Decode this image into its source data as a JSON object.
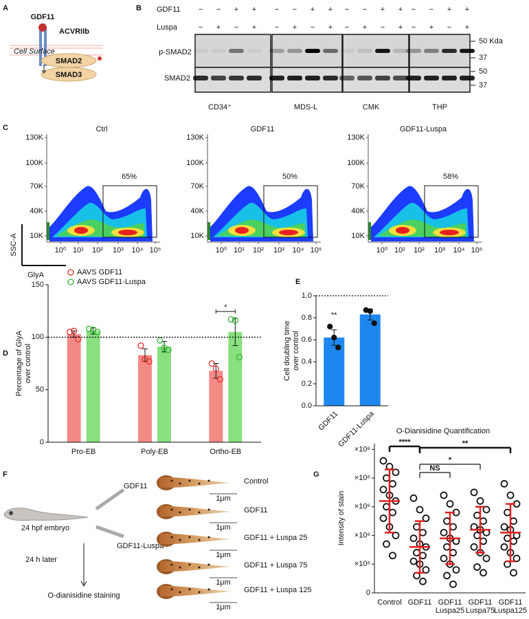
{
  "panel_labels": [
    "A",
    "B",
    "C",
    "D",
    "E",
    "F",
    "G"
  ],
  "panel_a": {
    "ligand": "GDF11",
    "receptor": "ACVRIIb",
    "membrane": "Cell Surface",
    "smads": [
      "SMAD2",
      "SMAD3"
    ]
  },
  "panel_b": {
    "rows": [
      {
        "name": "GDF11",
        "signs": [
          "−",
          "−",
          "+",
          "+",
          "−",
          "−",
          "+",
          "+",
          "−",
          "−",
          "+",
          "+",
          "−",
          "−",
          "+",
          "+"
        ]
      },
      {
        "name": "Luspa",
        "signs": [
          "−",
          "+",
          "−",
          "+",
          "−",
          "+",
          "−",
          "+",
          "−",
          "+",
          "−",
          "+",
          "−",
          "+",
          "−",
          "+"
        ]
      }
    ],
    "blots": [
      "p-SMAD2",
      "SMAD2"
    ],
    "markers": [
      "50 Kda",
      "37",
      "50",
      "37"
    ],
    "cell_lines": [
      "CD34⁺",
      "MDS-L",
      "CMK",
      "THP"
    ]
  },
  "panel_c": {
    "plots": [
      {
        "title": "Ctrl",
        "gate": "65%"
      },
      {
        "title": "GDF11",
        "gate": "50%"
      },
      {
        "title": "GDF11-Luspa",
        "gate": "58%"
      }
    ],
    "yticks": [
      "130K",
      "100K",
      "70K",
      "40K",
      "10K"
    ],
    "xticks": [
      "10⁰",
      "10¹",
      "10²",
      "10³",
      "10⁴",
      "10⁵"
    ],
    "ylabel": "SSC-A",
    "xlabel": "GlyA"
  },
  "panel_f": {
    "syringes": [
      "GDF11",
      "GDF11-Luspa"
    ],
    "embryo": "24 hpf embryo",
    "wait": "24 h later",
    "stain": "O-dianisidine staining",
    "groups": [
      "Control",
      "GDF11",
      "GDF11 + Luspa 25",
      "GDF11 + Luspa 75",
      "GDF11 + Luspa 125"
    ],
    "scale": "1μm"
  },
  "chart_data": [
    {
      "type": "bar",
      "categories": [
        "Pro-EB",
        "Poly-EB",
        "Ortho-EB"
      ],
      "series": [
        {
          "name": "AAVS GDF11",
          "color": "#e3302a",
          "fill": "#f48a86",
          "values": [
            103,
            83,
            68
          ],
          "errors": [
            3,
            6,
            7
          ],
          "points": [
            [
              105,
              106,
              98
            ],
            [
              92,
              79,
              77
            ],
            [
              75,
              70,
              60
            ]
          ]
        },
        {
          "name": "AAVS GDF11-Luspa",
          "color": "#2fb52f",
          "fill": "#88e07f",
          "values": [
            106,
            91,
            105
          ],
          "errors": [
            3,
            5,
            13
          ],
          "points": [
            [
              108,
              107,
              105
            ],
            [
              97,
              90,
              88
            ],
            [
              117,
              116,
              81
            ]
          ]
        }
      ],
      "ylabel": [
        "Percentage of GlyA",
        "over control"
      ],
      "ylim": [
        0,
        150
      ],
      "yticks": [
        0,
        50,
        100,
        150
      ],
      "reference_line": 100,
      "annotations": [
        {
          "label": "*",
          "category": 2
        }
      ],
      "legend": "upper left"
    },
    {
      "type": "bar",
      "categories": [
        "GDF11",
        "GDF11-Luspa"
      ],
      "values": [
        0.62,
        0.83
      ],
      "errors": [
        0.07,
        0.05
      ],
      "points": [
        [
          0.72,
          0.62,
          0.53
        ],
        [
          0.87,
          0.86,
          0.75
        ]
      ],
      "color": "#1e88f0",
      "ylabel": [
        "Cell doubling time",
        "over control"
      ],
      "ylim": [
        0,
        1
      ],
      "yticks": [
        {
          "value": 0,
          "label": "0.0"
        },
        0.2,
        0.4,
        0.6,
        0.8,
        {
          "value": 1,
          "label": "1.0"
        }
      ],
      "reference_line": 1,
      "annotations": [
        {
          "label": "**",
          "category": 0
        }
      ]
    },
    {
      "type": "dot",
      "title": "O-Dianisidine Quantification",
      "ylabel": [
        "Intensity of stain"
      ],
      "categories": [
        [
          "Control"
        ],
        [
          "GDF11"
        ],
        [
          "GDF11",
          "Luspa25"
        ],
        [
          "GDF11",
          "Luspa75"
        ],
        [
          "GDF11",
          "Luspa125"
        ]
      ],
      "points": [
        [
          4600000,
          4400000,
          4200000,
          4000000,
          3800000,
          3600000,
          3400000,
          3200000,
          3000000,
          2800000,
          2600000,
          2300000,
          2000000,
          1700000,
          1300000
        ],
        [
          3300000,
          2900000,
          2600000,
          2300000,
          2100000,
          1900000,
          1700000,
          1600000,
          1400000,
          1300000,
          1100000,
          1000000,
          800000,
          600000,
          400000
        ],
        [
          3400000,
          3100000,
          2800000,
          2500000,
          2300000,
          2100000,
          1900000,
          1800000,
          1600000,
          1400000,
          1200000,
          1000000,
          800000,
          600000,
          300000
        ],
        [
          3500000,
          3200000,
          2900000,
          2700000,
          2500000,
          2300000,
          2200000,
          2100000,
          2000000,
          1800000,
          1600000,
          1400000,
          1200000,
          900000,
          700000
        ],
        [
          3800000,
          3400000,
          3100000,
          2800000,
          2500000,
          2300000,
          2200000,
          2000000,
          1900000,
          1800000,
          1600000,
          1400000,
          1200000,
          1000000,
          700000
        ]
      ],
      "means": [
        3200000,
        1600000,
        1900000,
        2200000,
        2100000
      ],
      "sd": [
        1100000,
        900000,
        900000,
        800000,
        1000000
      ],
      "color": "#e32020",
      "marker_color": "#111111",
      "ylim": [
        0,
        5200000
      ],
      "yticks": [
        0,
        {
          "value": 1000000,
          "label": "×10⁶"
        },
        {
          "value": 2000000,
          "label": "×10⁶"
        },
        {
          "value": 3000000,
          "label": "×10⁶"
        },
        {
          "value": 4000000,
          "label": "×10⁶"
        },
        {
          "value": 5000000,
          "label": "×10⁶"
        }
      ],
      "annotations": [
        {
          "label": "****",
          "from": 0,
          "to": 1
        },
        {
          "label": "NS",
          "from": 1,
          "to": 2
        },
        {
          "label": "*",
          "from": 1,
          "to": 3
        },
        {
          "label": "**",
          "from": 1,
          "to": 4
        }
      ]
    }
  ]
}
